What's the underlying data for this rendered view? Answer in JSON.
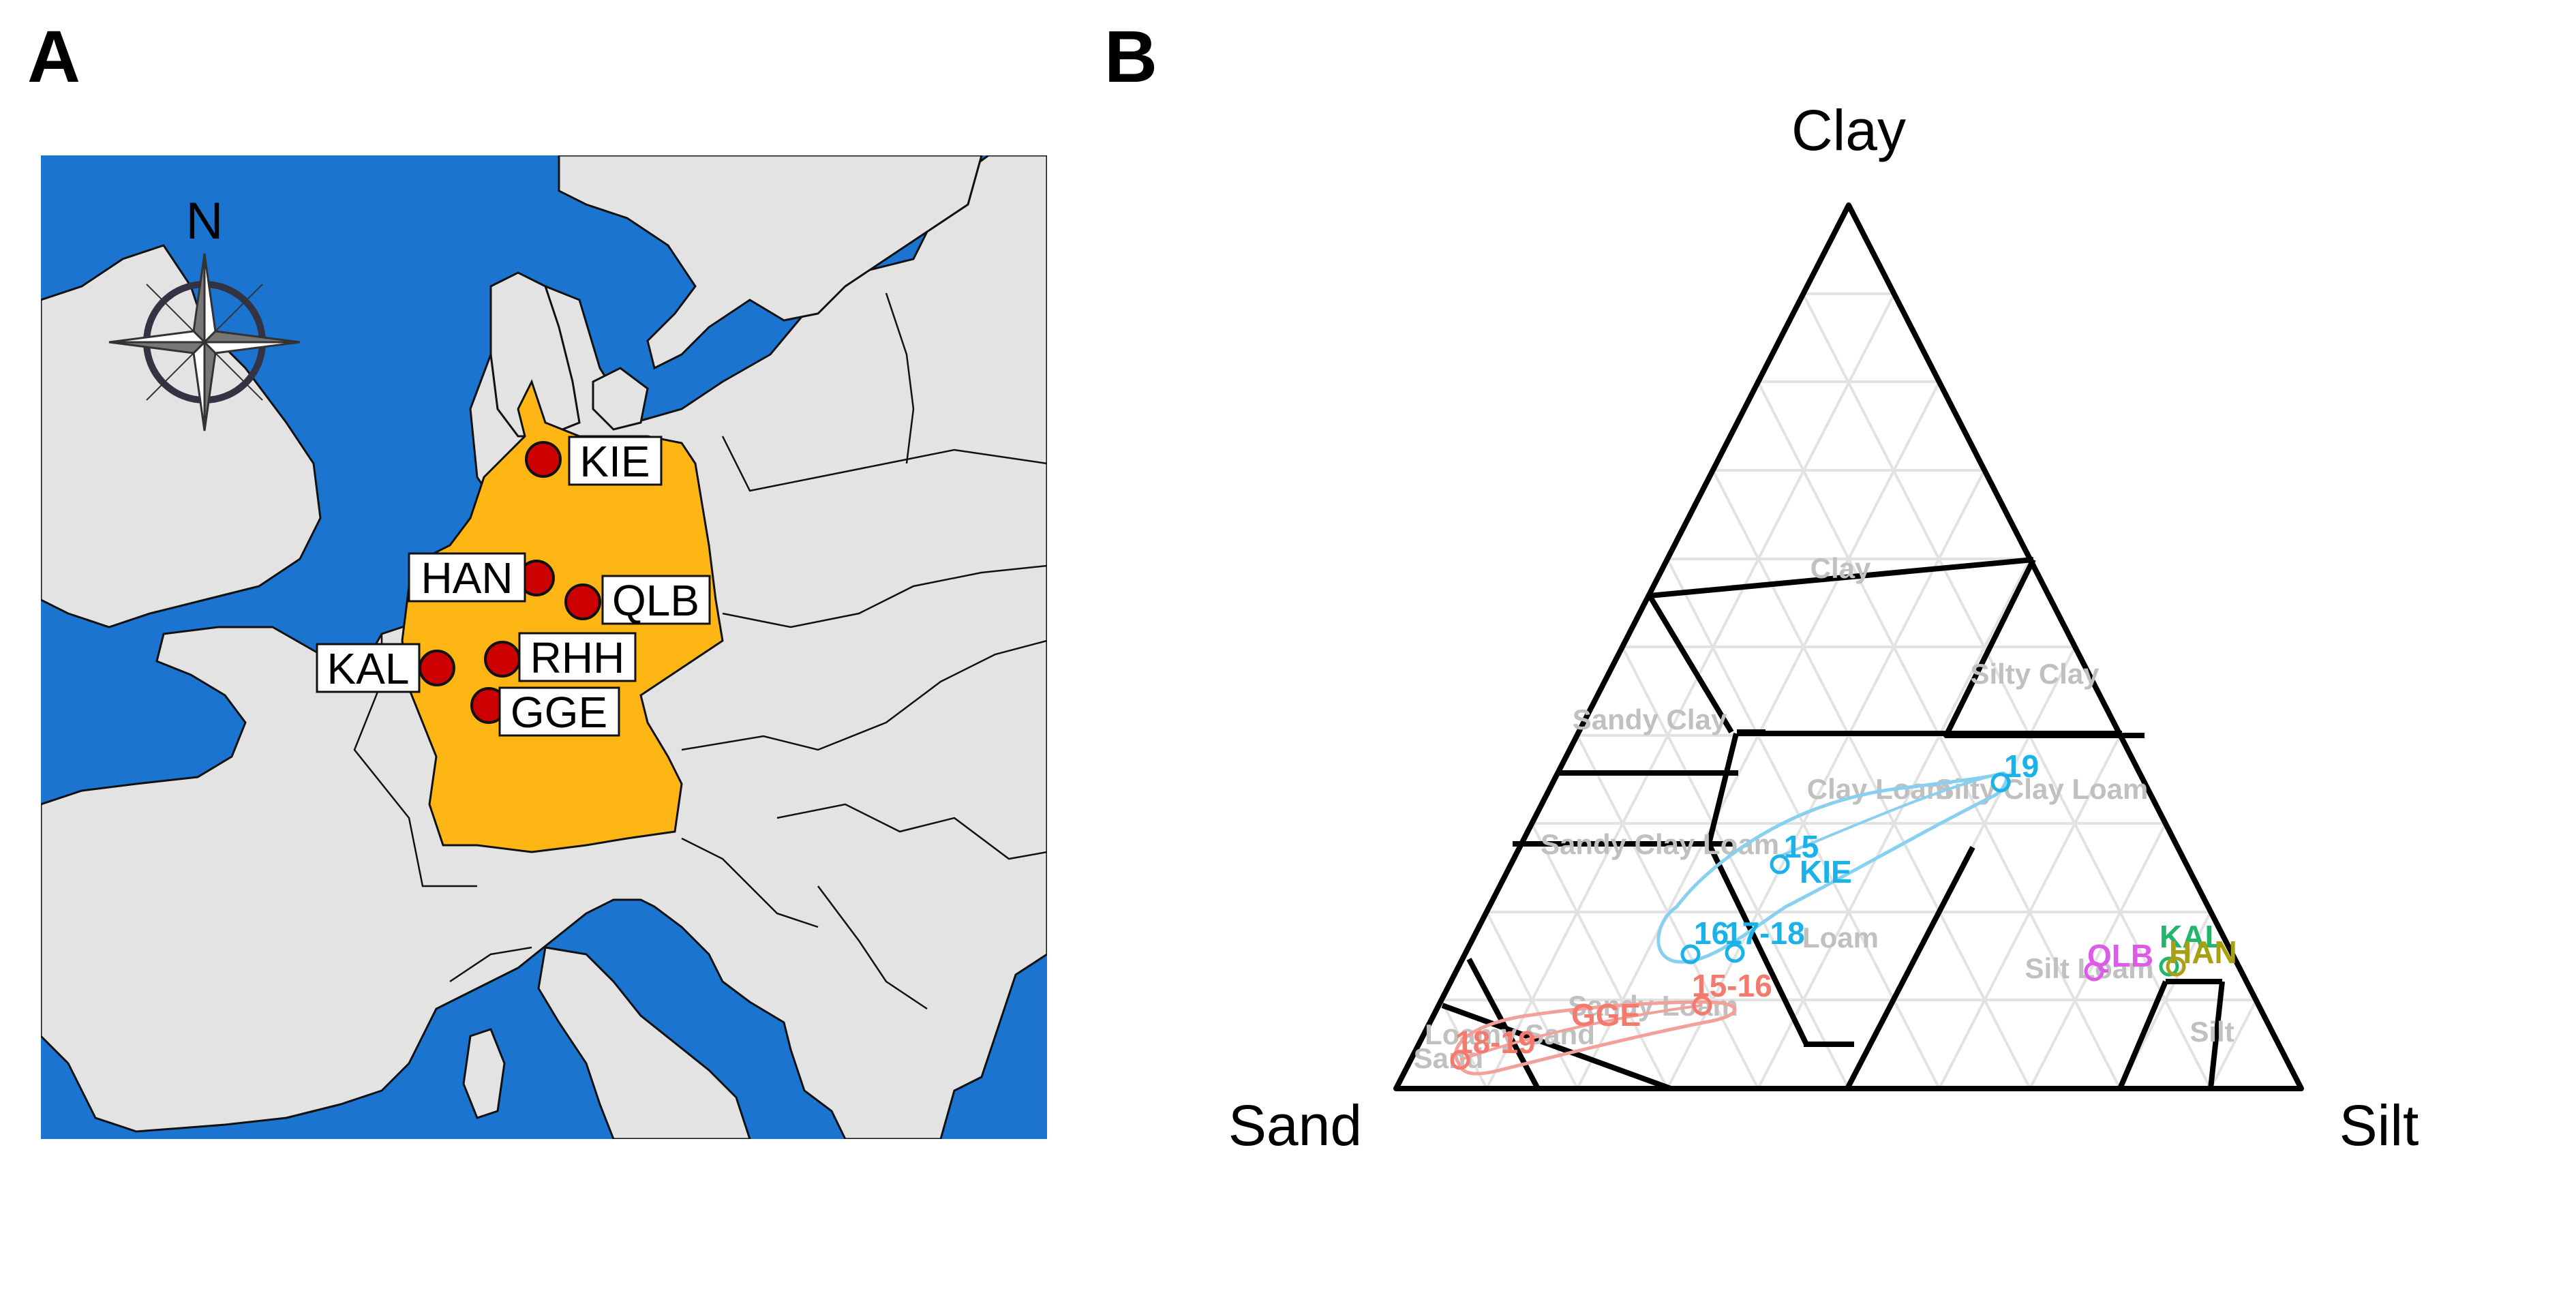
{
  "panel_a": {
    "label": "A",
    "north_label": "N",
    "colors": {
      "sea": "#1b75d0",
      "land": "#e3e3e3",
      "germany": "#fdb614",
      "site_marker": "#cc0000"
    },
    "sites": [
      {
        "code": "KIE"
      },
      {
        "code": "HAN"
      },
      {
        "code": "QLB"
      },
      {
        "code": "RHH"
      },
      {
        "code": "KAL"
      },
      {
        "code": "GGE"
      }
    ]
  },
  "panel_b": {
    "label": "B",
    "axis_labels": {
      "top": "Clay",
      "left": "Sand",
      "right": "Silt"
    },
    "texture_classes": [
      "Clay",
      "Silty Clay",
      "Sandy Clay",
      "Clay Loam",
      "Silty Clay Loam",
      "Sandy Clay Loam",
      "Loam",
      "Silt Loam",
      "Silt",
      "Sandy Loam",
      "Loamy Sand",
      "Sand"
    ],
    "kie_points": [
      "15",
      "16",
      "17-18",
      "19"
    ],
    "kie_label": "KIE",
    "gge_points": [
      "15-16",
      "18-19"
    ],
    "gge_label": "GGE",
    "site_points": [
      "QLB",
      "KAL",
      "HAN"
    ],
    "colors": {
      "KIE": "#1ab2e8",
      "GGE": "#f47a6e",
      "QLB": "#dc5ce8",
      "KAL": "#22b56b",
      "HAN": "#a8a010",
      "class_label": "#c0c0c0",
      "grid": "#e2e2e2"
    }
  }
}
